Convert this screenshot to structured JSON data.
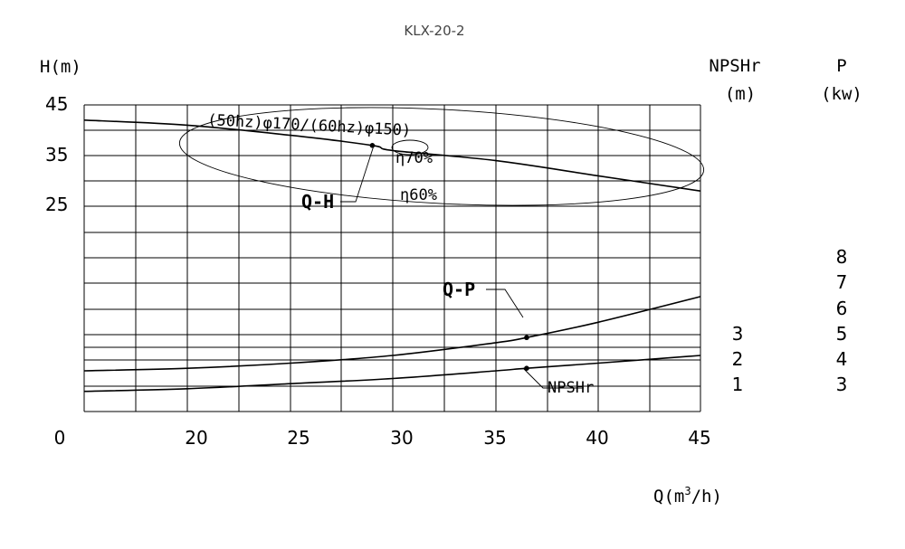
{
  "chart_data": {
    "type": "line",
    "title": "KLX-20-2",
    "xlabel_prefix": "Q(m",
    "xlabel_sup": "3",
    "xlabel_suffix": "/h)",
    "ylabel": "H(m)",
    "y2label": [
      "NPSHr",
      "(m)"
    ],
    "y3label": [
      "P",
      "(kw)"
    ],
    "x_ticks": [
      "0",
      "20",
      "25",
      "30",
      "35",
      "40",
      "45"
    ],
    "h_ticks": [
      "45",
      "35",
      "25"
    ],
    "npshr_ticks": [
      "3",
      "2",
      "1"
    ],
    "p_ticks": [
      "8",
      "7",
      "6",
      "5",
      "4",
      "3"
    ],
    "impeller_label": "(50hz)φ170/(60hz)φ150)",
    "eff_labels": [
      "η70%",
      "η60%"
    ],
    "series": [
      {
        "name": "Q-H",
        "x": [
          15,
          20,
          25,
          29,
          30,
          35,
          40,
          45
        ],
        "y": [
          42,
          41,
          39,
          37,
          36,
          34,
          31,
          28
        ]
      },
      {
        "name": "Q-P",
        "x": [
          15,
          20,
          25,
          30,
          35,
          36.5,
          40,
          45
        ],
        "y": [
          3.6,
          3.7,
          3.9,
          4.2,
          4.7,
          4.9,
          5.5,
          6.5
        ]
      },
      {
        "name": "NPSHr",
        "x": [
          15,
          20,
          25,
          30,
          35,
          36.5,
          40,
          45
        ],
        "y": [
          0.8,
          0.9,
          1.1,
          1.3,
          1.6,
          1.7,
          1.9,
          2.2
        ]
      }
    ],
    "grid": true
  }
}
